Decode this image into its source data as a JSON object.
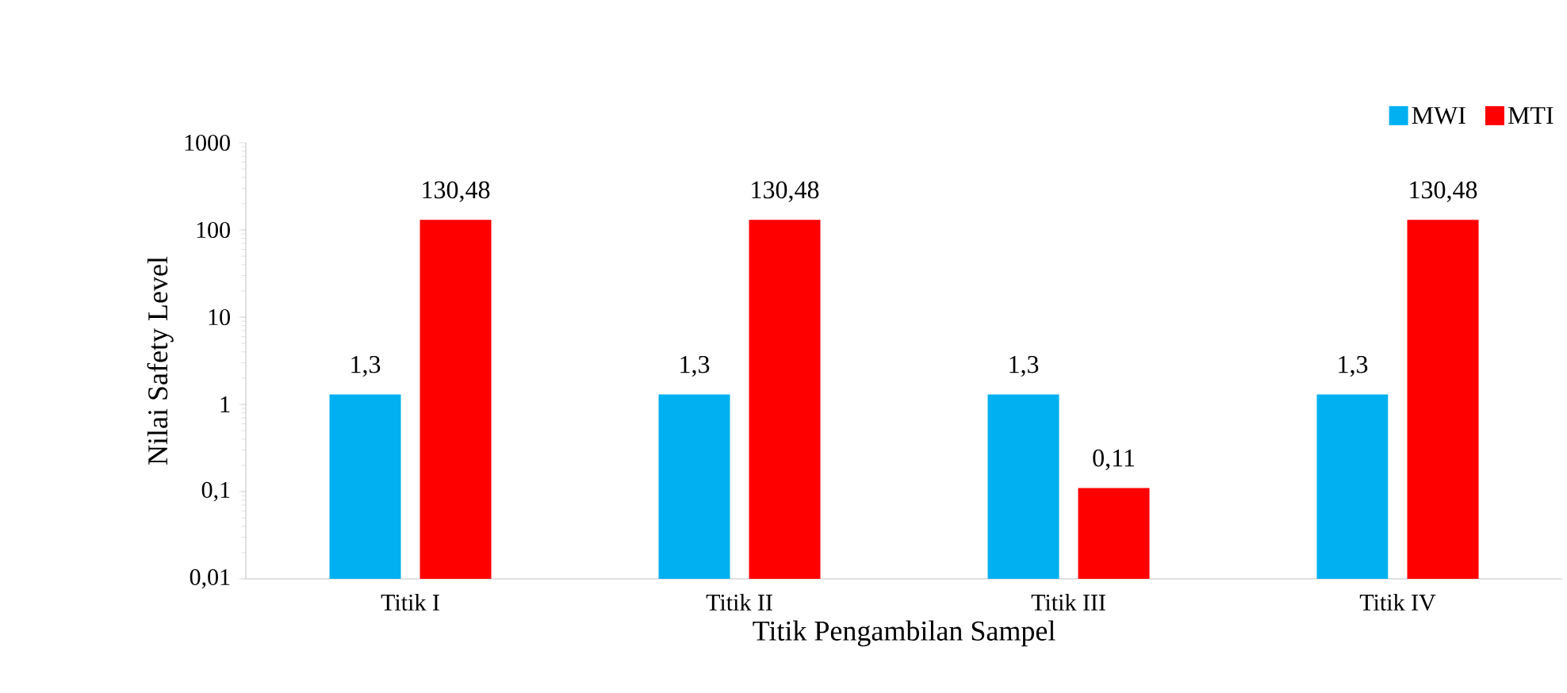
{
  "chart_data": {
    "type": "bar",
    "xlabel": "Titik Pengambilan Sampel",
    "ylabel": "Nilai Safety Level",
    "categories": [
      "Titik I",
      "Titik II",
      "Titik III",
      "Titik IV"
    ],
    "series": [
      {
        "name": "MWI",
        "color": "#00b0f0",
        "values": [
          1.3,
          1.3,
          1.3,
          1.3
        ],
        "value_labels": [
          "1,3",
          "1,3",
          "1,3",
          "1,3"
        ]
      },
      {
        "name": "MTI",
        "color": "#ff0000",
        "values": [
          130.48,
          130.48,
          0.11,
          130.48
        ],
        "value_labels": [
          "130,48",
          "130,48",
          "0,11",
          "130,48"
        ]
      }
    ],
    "log": true,
    "ylim": [
      0.01,
      1000
    ],
    "yticks": [
      {
        "value": 0.01,
        "label": "0,01"
      },
      {
        "value": 0.1,
        "label": "0,1"
      },
      1,
      10,
      100,
      1000
    ],
    "legend": "top right",
    "grid": false
  }
}
